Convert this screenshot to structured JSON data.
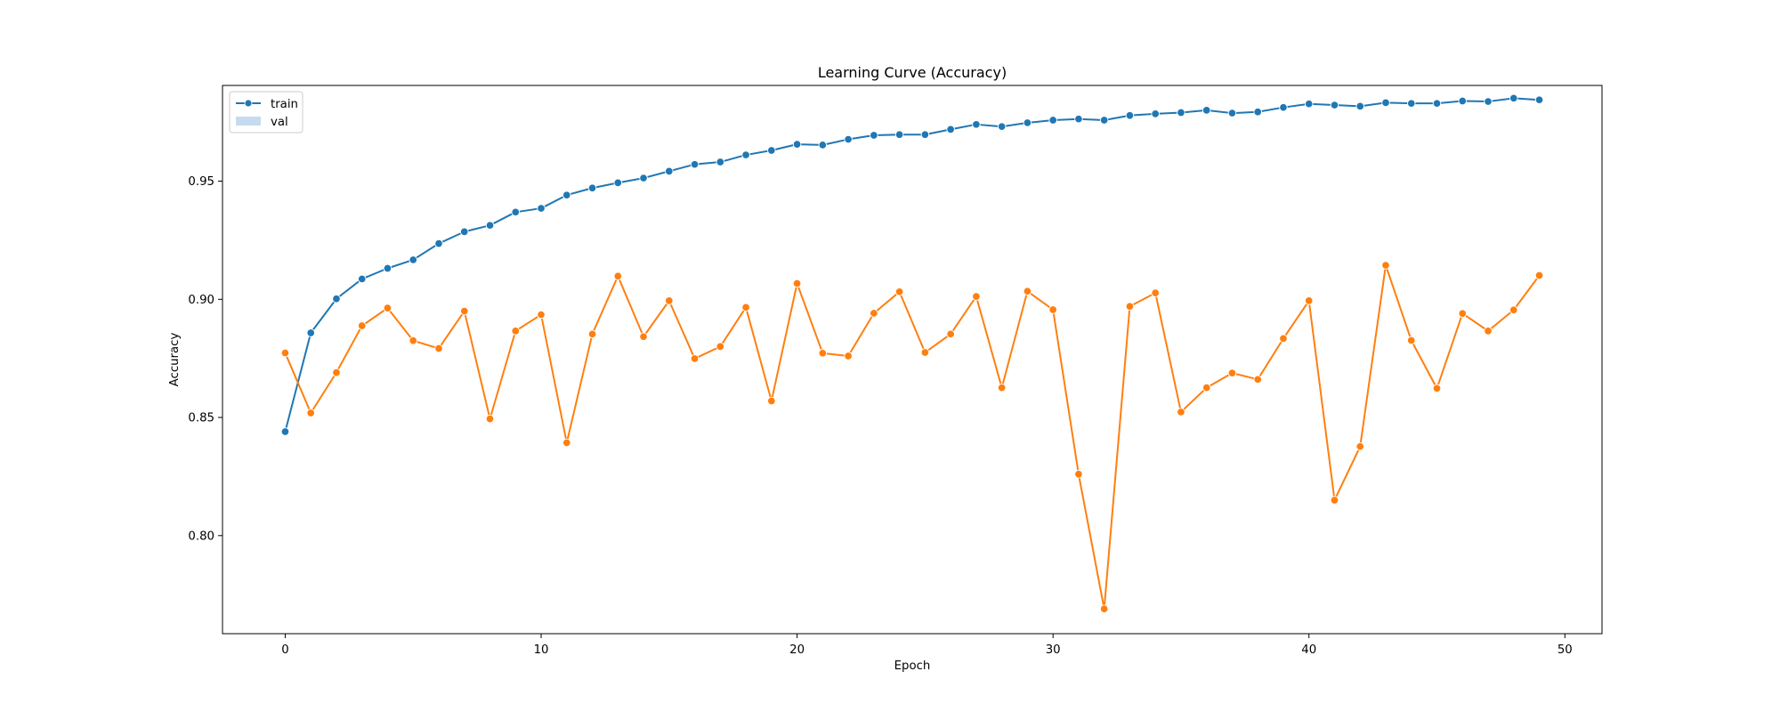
{
  "chart_data": {
    "type": "line",
    "title": "Learning Curve (Accuracy)",
    "xlabel": "Epoch",
    "ylabel": "Accuracy",
    "xlim": [
      -2.45,
      51.45
    ],
    "ylim": [
      0.7585,
      0.9905
    ],
    "xticks": [
      0,
      10,
      20,
      30,
      40,
      50
    ],
    "yticks": [
      0.8,
      0.85,
      0.9,
      0.95
    ],
    "ytick_labels": [
      "0.80",
      "0.85",
      "0.90",
      "0.95"
    ],
    "grid": false,
    "legend_position": "top-left",
    "x": [
      0,
      1,
      2,
      3,
      4,
      5,
      6,
      7,
      8,
      9,
      10,
      11,
      12,
      13,
      14,
      15,
      16,
      17,
      18,
      19,
      20,
      21,
      22,
      23,
      24,
      25,
      26,
      27,
      28,
      29,
      30,
      31,
      32,
      33,
      34,
      35,
      36,
      37,
      38,
      39,
      40,
      41,
      42,
      43,
      44,
      45,
      46,
      47,
      48,
      49
    ],
    "series": [
      {
        "name": "train",
        "color": "#1f77b4",
        "legend_marker": "line-with-dot",
        "values": [
          0.844,
          0.8858,
          0.9002,
          0.9086,
          0.9131,
          0.9167,
          0.9236,
          0.9286,
          0.9313,
          0.9369,
          0.9385,
          0.9441,
          0.9471,
          0.9493,
          0.9513,
          0.9542,
          0.9571,
          0.9581,
          0.9611,
          0.963,
          0.9656,
          0.9653,
          0.9677,
          0.9694,
          0.9697,
          0.9697,
          0.9719,
          0.974,
          0.9731,
          0.9747,
          0.9758,
          0.9763,
          0.9758,
          0.9778,
          0.9785,
          0.979,
          0.98,
          0.9788,
          0.9793,
          0.9812,
          0.9827,
          0.9822,
          0.9817,
          0.9832,
          0.9829,
          0.9829,
          0.9839,
          0.9837,
          0.9851,
          0.9844
        ]
      },
      {
        "name": "val",
        "color": "#ff7f0e",
        "legend_marker": "patch",
        "legend_patch_color": "#c6dbef",
        "values": [
          0.8773,
          0.8519,
          0.869,
          0.8888,
          0.8963,
          0.8825,
          0.8792,
          0.895,
          0.8494,
          0.8866,
          0.8935,
          0.8393,
          0.8853,
          0.9098,
          0.8842,
          0.8994,
          0.8749,
          0.88,
          0.8966,
          0.857,
          0.9067,
          0.8772,
          0.876,
          0.8941,
          0.9032,
          0.8775,
          0.8853,
          0.9012,
          0.8626,
          0.9034,
          0.8956,
          0.826,
          0.769,
          0.897,
          0.9027,
          0.8523,
          0.8626,
          0.8688,
          0.8661,
          0.8834,
          0.8994,
          0.815,
          0.8377,
          0.9144,
          0.8826,
          0.8623,
          0.894,
          0.8866,
          0.8955,
          0.9101
        ]
      }
    ]
  }
}
